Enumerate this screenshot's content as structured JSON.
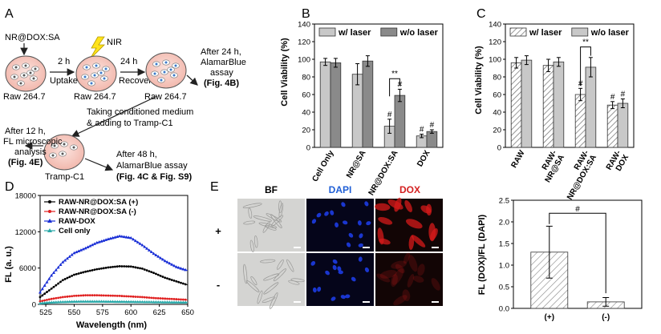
{
  "panel_a": {
    "letter": "A",
    "compound": "NR@DOX:SA",
    "nir": "NIR",
    "step1_time": "2 h",
    "step1_label": "Uptake",
    "step2_time": "24 h",
    "step2_label": "Recover",
    "cell_raw1": "Raw 264.7",
    "cell_raw2": "Raw 264.7",
    "cell_raw3": "Raw 264.7",
    "after24_line1": "After 24 h,",
    "after24_line2": "AlamarBlue",
    "after24_line3": "assay",
    "after24_ref": "(Fig. 4B)",
    "conditioned_line1": "Taking conditioned medium",
    "conditioned_line2": "& adding to Tramp-C1",
    "tramp": "Tramp-C1",
    "after12_line1": "After 12 h,",
    "after12_line2": "FL microscopic",
    "after12_line3": "analysis",
    "after12_ref": "(Fig. 4E)",
    "after48_line1": "After 48 h,",
    "after48_line2": "AlamarBlue assay",
    "after48_ref": "(Fig. 4C & Fig. S9)"
  },
  "chart_data": [
    {
      "id": "B",
      "type": "bar",
      "letter": "B",
      "ylabel": "Cell Viability (%)",
      "ylim": [
        0,
        140
      ],
      "yticks": [
        "0",
        "20",
        "40",
        "60",
        "80",
        "100",
        "120",
        "140"
      ],
      "categories": [
        "Cell Only",
        "NR@SA",
        "NR@DOX:SA",
        "DOX"
      ],
      "legend": [
        "w/ laser",
        "w/o laser"
      ],
      "colors": [
        "#c8c8c8",
        "#8a8a8a"
      ],
      "series": [
        {
          "name": "w/ laser",
          "values": [
            97,
            83,
            24,
            13
          ],
          "errors": [
            4,
            12,
            8,
            2
          ]
        },
        {
          "name": "w/o laser",
          "values": [
            96,
            98,
            59,
            18
          ],
          "errors": [
            5,
            6,
            7,
            2
          ]
        }
      ],
      "annotations": [
        "**",
        "#",
        "#",
        "#",
        "#"
      ]
    },
    {
      "id": "C",
      "type": "bar",
      "letter": "C",
      "ylabel": "Cell Viability (%)",
      "ylim": [
        0,
        140
      ],
      "yticks": [
        "0",
        "20",
        "40",
        "60",
        "80",
        "100",
        "120",
        "140"
      ],
      "categories": [
        "RAW",
        "RAW-\nNR@SA",
        "RAW-\nNR@DOX:SA",
        "RAW-\nDOX"
      ],
      "legend": [
        "w/ laser",
        "w/o laser"
      ],
      "colors": [
        "#ffffff",
        "#c8c8c8"
      ],
      "series": [
        {
          "name": "w/ laser",
          "values": [
            96,
            93,
            60,
            48
          ],
          "errors": [
            6,
            7,
            7,
            4
          ]
        },
        {
          "name": "w/o laser",
          "values": [
            99,
            97,
            91,
            50
          ],
          "errors": [
            5,
            5,
            11,
            5
          ]
        }
      ],
      "annotations": [
        "**",
        "#",
        "#",
        "#"
      ]
    },
    {
      "id": "D",
      "type": "line",
      "letter": "D",
      "xlabel": "Wavelength (nm)",
      "ylabel": "FL (a. u.)",
      "xlim": [
        520,
        650
      ],
      "ylim": [
        0,
        18000
      ],
      "xticks": [
        "525",
        "550",
        "575",
        "600",
        "625",
        "650"
      ],
      "yticks": [
        "0",
        "6000",
        "12000",
        "18000"
      ],
      "x": [
        520,
        530,
        540,
        550,
        560,
        570,
        580,
        590,
        600,
        610,
        620,
        630,
        640,
        650
      ],
      "series": [
        {
          "name": "RAW-NR@DOX:SA (+)",
          "color": "#000000",
          "values": [
            1200,
            2600,
            4000,
            4900,
            5400,
            5800,
            6100,
            6300,
            6250,
            5900,
            5200,
            4400,
            3800,
            3200
          ]
        },
        {
          "name": "RAW-NR@DOX:SA (-)",
          "color": "#e02020",
          "values": [
            500,
            900,
            1200,
            1400,
            1500,
            1500,
            1450,
            1400,
            1300,
            1200,
            1050,
            950,
            850,
            750
          ]
        },
        {
          "name": "RAW-DOX",
          "color": "#1a2fd6",
          "values": [
            2000,
            4800,
            7000,
            8500,
            9300,
            10200,
            10800,
            11300,
            11000,
            9800,
            8400,
            7200,
            6200,
            5600
          ]
        },
        {
          "name": "Cell only",
          "color": "#2aa8a8",
          "values": [
            200,
            350,
            420,
            480,
            500,
            500,
            480,
            460,
            440,
            420,
            400,
            380,
            360,
            340
          ]
        }
      ]
    },
    {
      "id": "E_chart",
      "type": "bar",
      "ylabel": "FL (DOX)/FL (DAPI)",
      "ylim": [
        0,
        2.5
      ],
      "yticks": [
        "0.0",
        "0.5",
        "1.0",
        "1.5",
        "2.0",
        "2.5"
      ],
      "categories": [
        "(+)",
        "(-)"
      ],
      "values": [
        1.3,
        0.15
      ],
      "errors": [
        0.6,
        0.1
      ],
      "annotation": "#"
    }
  ],
  "panel_e": {
    "letter": "E",
    "col_bf": "BF",
    "col_dapi": "DAPI",
    "col_dox": "DOX",
    "row_plus": "+",
    "row_minus": "-",
    "color_bf": "#000000",
    "color_dapi": "#1f5fd6",
    "color_dox": "#d42020"
  }
}
